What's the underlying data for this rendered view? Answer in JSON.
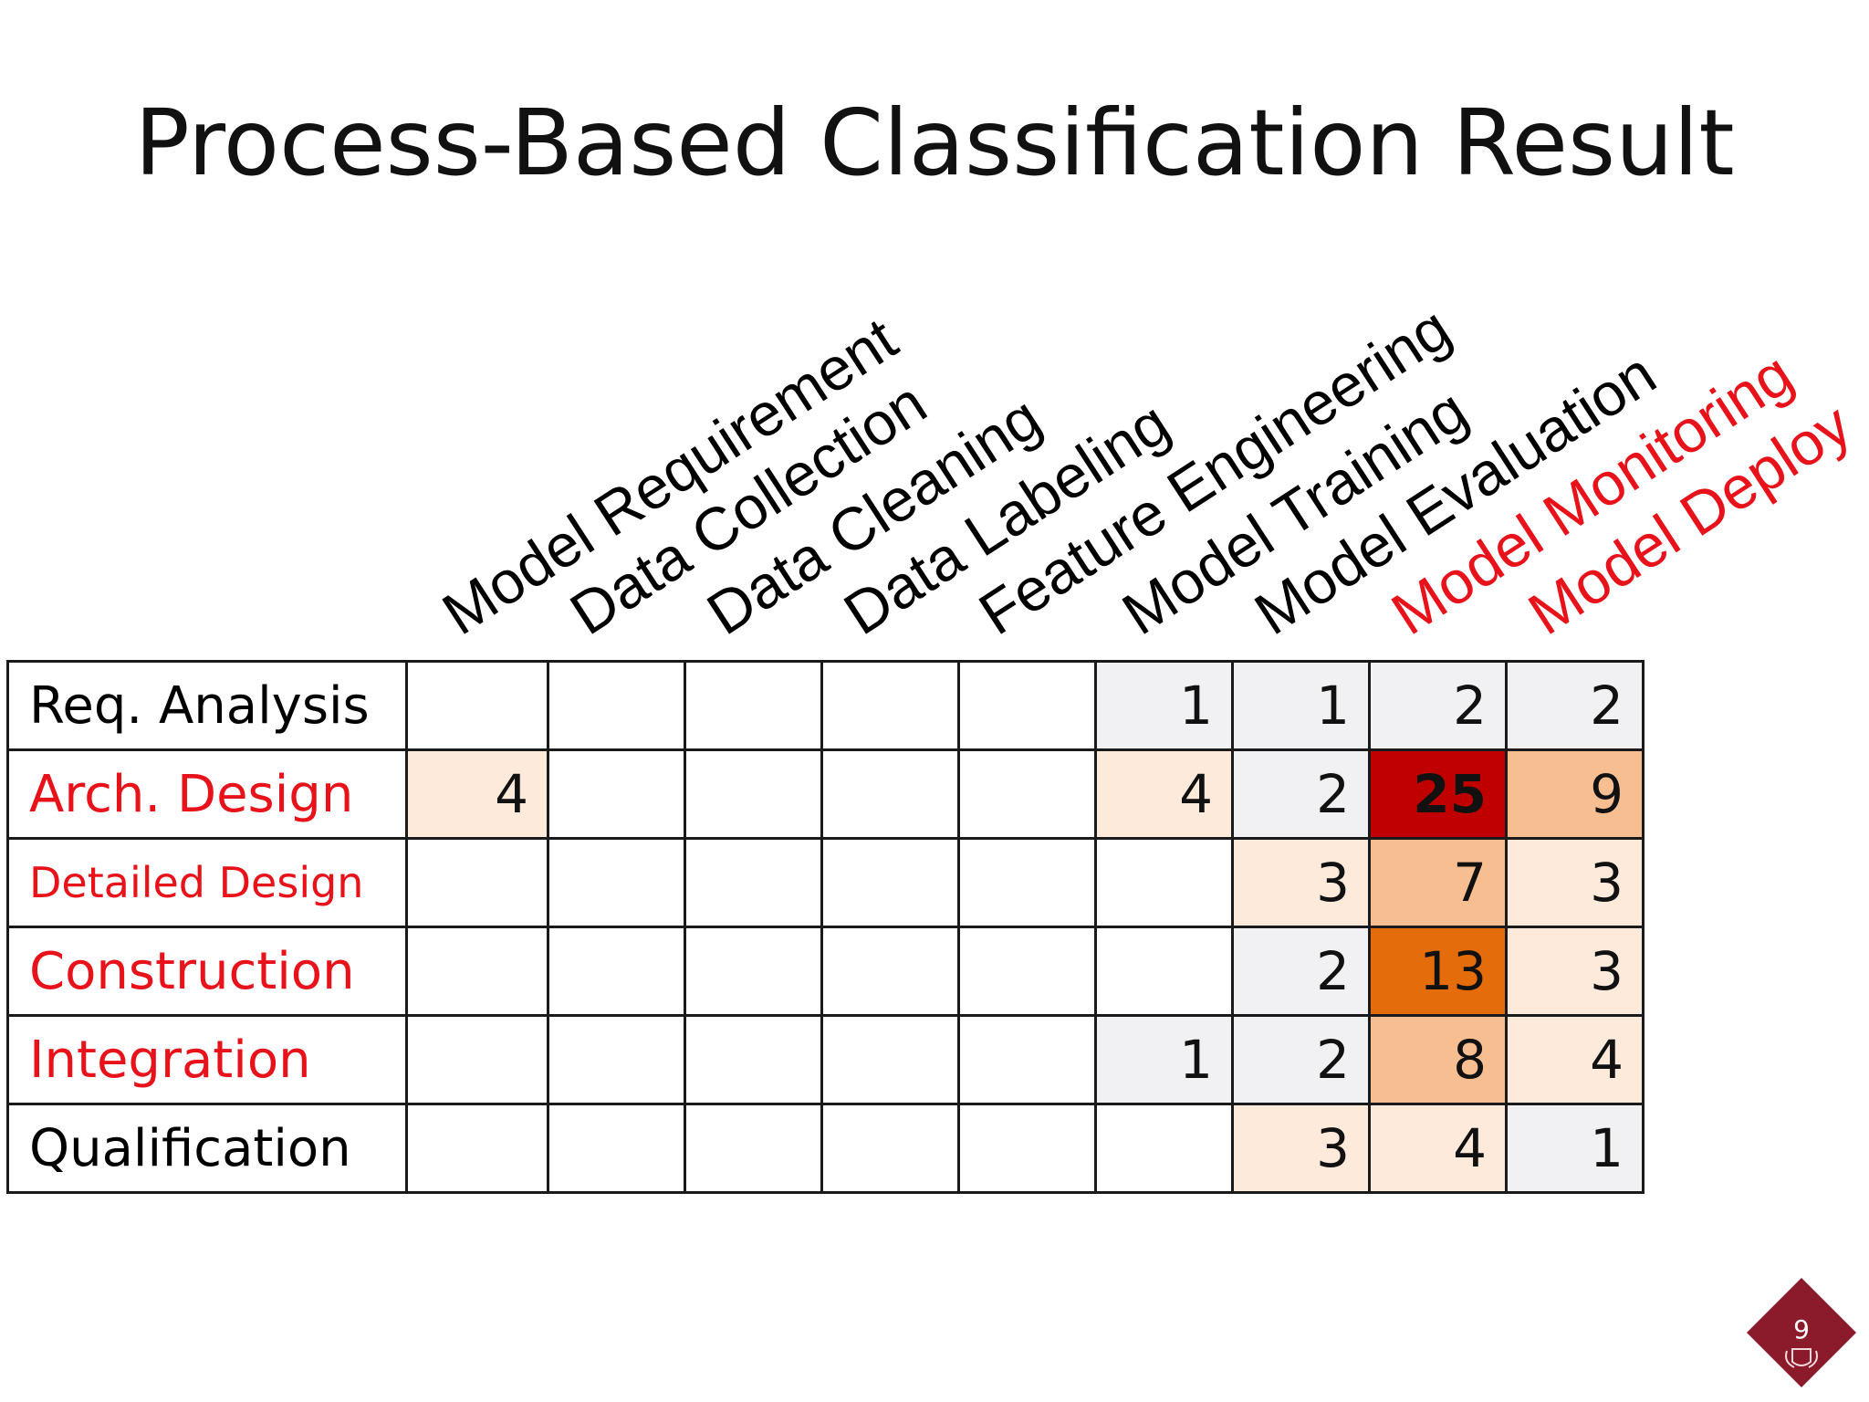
{
  "title": "Process-Based Classification Result",
  "columns": [
    {
      "label": "Model Requirement",
      "color": "#000000"
    },
    {
      "label": "Data Collection",
      "color": "#000000"
    },
    {
      "label": "Data Cleaning",
      "color": "#000000"
    },
    {
      "label": "Data Labeling",
      "color": "#000000"
    },
    {
      "label": "Feature Engineering",
      "color": "#000000"
    },
    {
      "label": "Model Training",
      "color": "#000000"
    },
    {
      "label": "Model Evaluation",
      "color": "#000000"
    },
    {
      "label": "Model Monitoring",
      "color": "#e8121a"
    },
    {
      "label": "Model Deploy",
      "color": "#e8121a"
    }
  ],
  "rows": [
    {
      "label": "Req. Analysis",
      "color": "#000000",
      "cells": [
        "",
        "",
        "",
        "",
        "",
        "1",
        "1",
        "2",
        "2"
      ]
    },
    {
      "label": "Arch. Design",
      "color": "#e8121a",
      "cells": [
        "4",
        "",
        "",
        "",
        "",
        "4",
        "2",
        "25",
        "9"
      ]
    },
    {
      "label": "Detailed Design",
      "color": "#e8121a",
      "cells": [
        "",
        "",
        "",
        "",
        "",
        "",
        "3",
        "7",
        "3"
      ]
    },
    {
      "label": "Construction",
      "color": "#e8121a",
      "cells": [
        "",
        "",
        "",
        "",
        "",
        "",
        "2",
        "13",
        "3"
      ]
    },
    {
      "label": "Integration",
      "color": "#e8121a",
      "cells": [
        "",
        "",
        "",
        "",
        "",
        "1",
        "2",
        "8",
        "4"
      ]
    },
    {
      "label": "Qualification",
      "color": "#000000",
      "cells": [
        "",
        "",
        "",
        "",
        "",
        "",
        "3",
        "4",
        "1"
      ]
    }
  ],
  "cell_colors": [
    [
      "#ffffff",
      "#ffffff",
      "#ffffff",
      "#ffffff",
      "#ffffff",
      "#f1f1f3",
      "#f1f1f3",
      "#f1f1f3",
      "#f1f1f3"
    ],
    [
      "#fdeadb",
      "#ffffff",
      "#ffffff",
      "#ffffff",
      "#ffffff",
      "#fdeadb",
      "#f1f1f3",
      "#c00000",
      "#f6be91"
    ],
    [
      "#ffffff",
      "#ffffff",
      "#ffffff",
      "#ffffff",
      "#ffffff",
      "#ffffff",
      "#fdeadb",
      "#f6be91",
      "#fdeadb"
    ],
    [
      "#ffffff",
      "#ffffff",
      "#ffffff",
      "#ffffff",
      "#ffffff",
      "#ffffff",
      "#f1f1f3",
      "#e46c0a",
      "#fdeadb"
    ],
    [
      "#ffffff",
      "#ffffff",
      "#ffffff",
      "#ffffff",
      "#ffffff",
      "#f1f1f3",
      "#f1f1f3",
      "#f6be91",
      "#fdeadb"
    ],
    [
      "#ffffff",
      "#ffffff",
      "#ffffff",
      "#ffffff",
      "#ffffff",
      "#ffffff",
      "#fdeadb",
      "#fdeadb",
      "#f1f1f3"
    ]
  ],
  "page_number": "9",
  "page_mark_color": "#8b1a2b"
}
